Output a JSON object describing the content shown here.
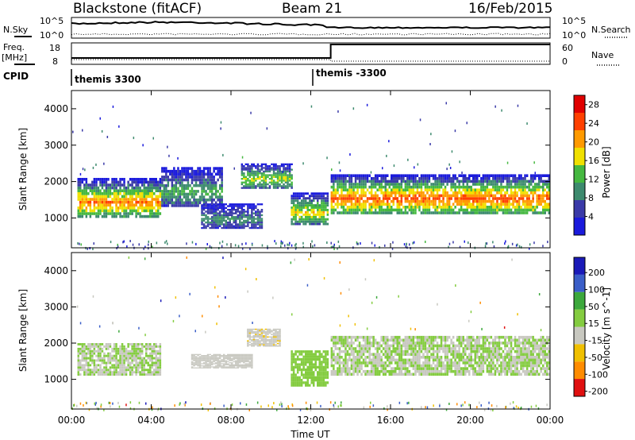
{
  "header": {
    "station": "Blackstone (fitACF)",
    "beam": "Beam 21",
    "date": "16/Feb/2015"
  },
  "strips": {
    "left_top": "N.Sky",
    "left_freq": "Freq.",
    "left_freq_unit": "[MHz]",
    "cpid_label": "CPID",
    "right_top": "N.Search",
    "right_mid": "Nave",
    "noise_ticks_left": [
      "10^5",
      "10^0"
    ],
    "noise_ticks_right": [
      "10^5",
      "10^0"
    ],
    "freq_ticks": [
      "18",
      "8"
    ],
    "nave_ticks": [
      "60",
      "0"
    ],
    "cpid_segments": [
      {
        "name": "themis 3300",
        "start_hour": 0,
        "end_hour": 12.1
      },
      {
        "name": "themis -3300",
        "start_hour": 12.1,
        "end_hour": 24
      }
    ],
    "colors": {
      "accent": "#000000"
    }
  },
  "xaxis": {
    "title": "Time UT",
    "ticks": [
      "00:00",
      "04:00",
      "08:00",
      "12:00",
      "16:00",
      "20:00",
      "00:00"
    ]
  },
  "chart_data": [
    {
      "type": "heatmap",
      "title": "",
      "ylabel": "Slant Range [km]",
      "xlabel": "Time UT",
      "x_range_hours": [
        0,
        24
      ],
      "ylim": [
        180,
        4500
      ],
      "yticks": [
        "1000",
        "2000",
        "3000",
        "4000"
      ],
      "colorbar": {
        "label": "Power [dB]",
        "ticks": [
          "4",
          "8",
          "12",
          "16",
          "20",
          "24",
          "28"
        ],
        "colors": [
          "#1a1adc",
          "#3a3aa8",
          "#3d8a6e",
          "#45b840",
          "#f0e000",
          "#ff9a00",
          "#ff4000",
          "#e00000"
        ],
        "range": [
          0,
          30
        ]
      },
      "bands": [
        {
          "start_hour": 0.3,
          "end_hour": 4.5,
          "range_lo": 1000,
          "range_hi": 2100,
          "peak_power": 22
        },
        {
          "start_hour": 4.5,
          "end_hour": 7.5,
          "range_lo": 1300,
          "range_hi": 2400,
          "peak_power": 12
        },
        {
          "start_hour": 6.5,
          "end_hour": 9.5,
          "range_lo": 700,
          "range_hi": 1400,
          "peak_power": 10
        },
        {
          "start_hour": 8.5,
          "end_hour": 11.0,
          "range_lo": 1800,
          "range_hi": 2500,
          "peak_power": 16
        },
        {
          "start_hour": 11.0,
          "end_hour": 12.8,
          "range_lo": 800,
          "range_hi": 1700,
          "peak_power": 18
        },
        {
          "start_hour": 13.0,
          "end_hour": 24.0,
          "range_lo": 1100,
          "range_hi": 2200,
          "peak_power": 24
        }
      ]
    },
    {
      "type": "heatmap",
      "title": "",
      "ylabel": "Slant Range [km]",
      "xlabel": "Time UT",
      "x_range_hours": [
        0,
        24
      ],
      "ylim": [
        180,
        4500
      ],
      "yticks": [
        "1000",
        "2000",
        "3000",
        "4000"
      ],
      "colorbar": {
        "label": "Velocity [m s^-1]",
        "ticks": [
          "200",
          "100",
          "50",
          "15",
          "-15",
          "-50",
          "-100",
          "-200"
        ],
        "colors": [
          "#1a1ab8",
          "#3a5ec8",
          "#3ca83c",
          "#84cc40",
          "#c8c8c0",
          "#f0c000",
          "#ff8c00",
          "#e01010"
        ],
        "range": [
          -250,
          250
        ]
      },
      "bands": [
        {
          "start_hour": 0.3,
          "end_hour": 4.5,
          "range_lo": 1100,
          "range_hi": 2000,
          "velocity": 0
        },
        {
          "start_hour": 6.0,
          "end_hour": 9.0,
          "range_lo": 1300,
          "range_hi": 1700,
          "velocity": -40
        },
        {
          "start_hour": 8.8,
          "end_hour": 10.4,
          "range_lo": 1900,
          "range_hi": 2400,
          "velocity": -50
        },
        {
          "start_hour": 11.0,
          "end_hour": 12.8,
          "range_lo": 800,
          "range_hi": 1800,
          "velocity": 40
        },
        {
          "start_hour": 13.0,
          "end_hour": 24.0,
          "range_lo": 1100,
          "range_hi": 2200,
          "velocity": 0
        }
      ]
    }
  ]
}
